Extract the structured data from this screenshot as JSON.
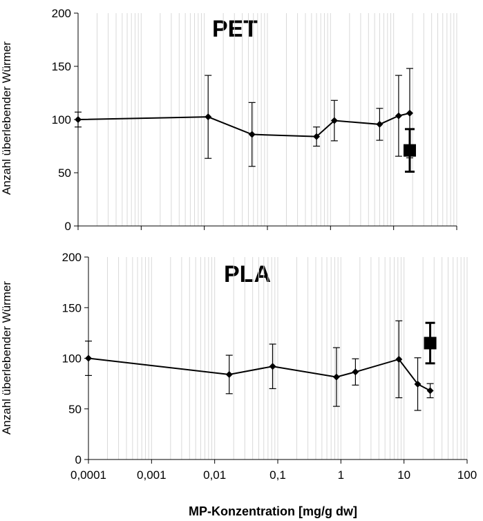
{
  "chart_data": [
    {
      "type": "line",
      "title": "PET",
      "ylabel": "Anzahl überlebender Würmer",
      "xlabel": "",
      "xscale": "log",
      "xlim": [
        0.0001,
        100
      ],
      "ylim": [
        0,
        200
      ],
      "yticks": [
        0,
        50,
        100,
        150,
        200
      ],
      "xticks": [],
      "grid": "vertical minor log gridlines",
      "series": [
        {
          "marker": "diamond",
          "x": [
            0.0001,
            0.0115,
            0.057,
            0.6,
            1.15,
            6.0,
            12.0,
            18.0
          ],
          "y": [
            100,
            102.5,
            86,
            84,
            99,
            95.5,
            103.5,
            106
          ],
          "err": [
            7,
            39,
            30,
            9,
            19,
            15,
            38,
            42
          ]
        },
        {
          "marker": "square",
          "x": [
            18.0
          ],
          "y": [
            71
          ],
          "err": [
            20
          ]
        }
      ]
    },
    {
      "type": "line",
      "title": "PLA",
      "ylabel": "Anzahl überlebender Würmer",
      "xlabel": "MP-Konzentration [mg/g dw]",
      "xscale": "log",
      "xlim": [
        0.0001,
        100
      ],
      "ylim": [
        0,
        200
      ],
      "yticks": [
        0,
        50,
        100,
        150,
        200
      ],
      "xticks": [
        "0,0001",
        "0,001",
        "0,01",
        "0,1",
        "1",
        "10",
        "100"
      ],
      "grid": "vertical minor log gridlines",
      "series": [
        {
          "marker": "diamond",
          "x": [
            0.0001,
            0.017,
            0.083,
            0.85,
            1.7,
            8.3,
            16.5,
            26.0
          ],
          "y": [
            100,
            84,
            92,
            81.5,
            86.5,
            99,
            74.5,
            68
          ],
          "err": [
            17,
            19,
            22,
            29,
            13,
            38,
            26,
            7
          ]
        },
        {
          "marker": "square",
          "x": [
            26.0
          ],
          "y": [
            115
          ],
          "err": [
            20
          ]
        }
      ]
    }
  ]
}
